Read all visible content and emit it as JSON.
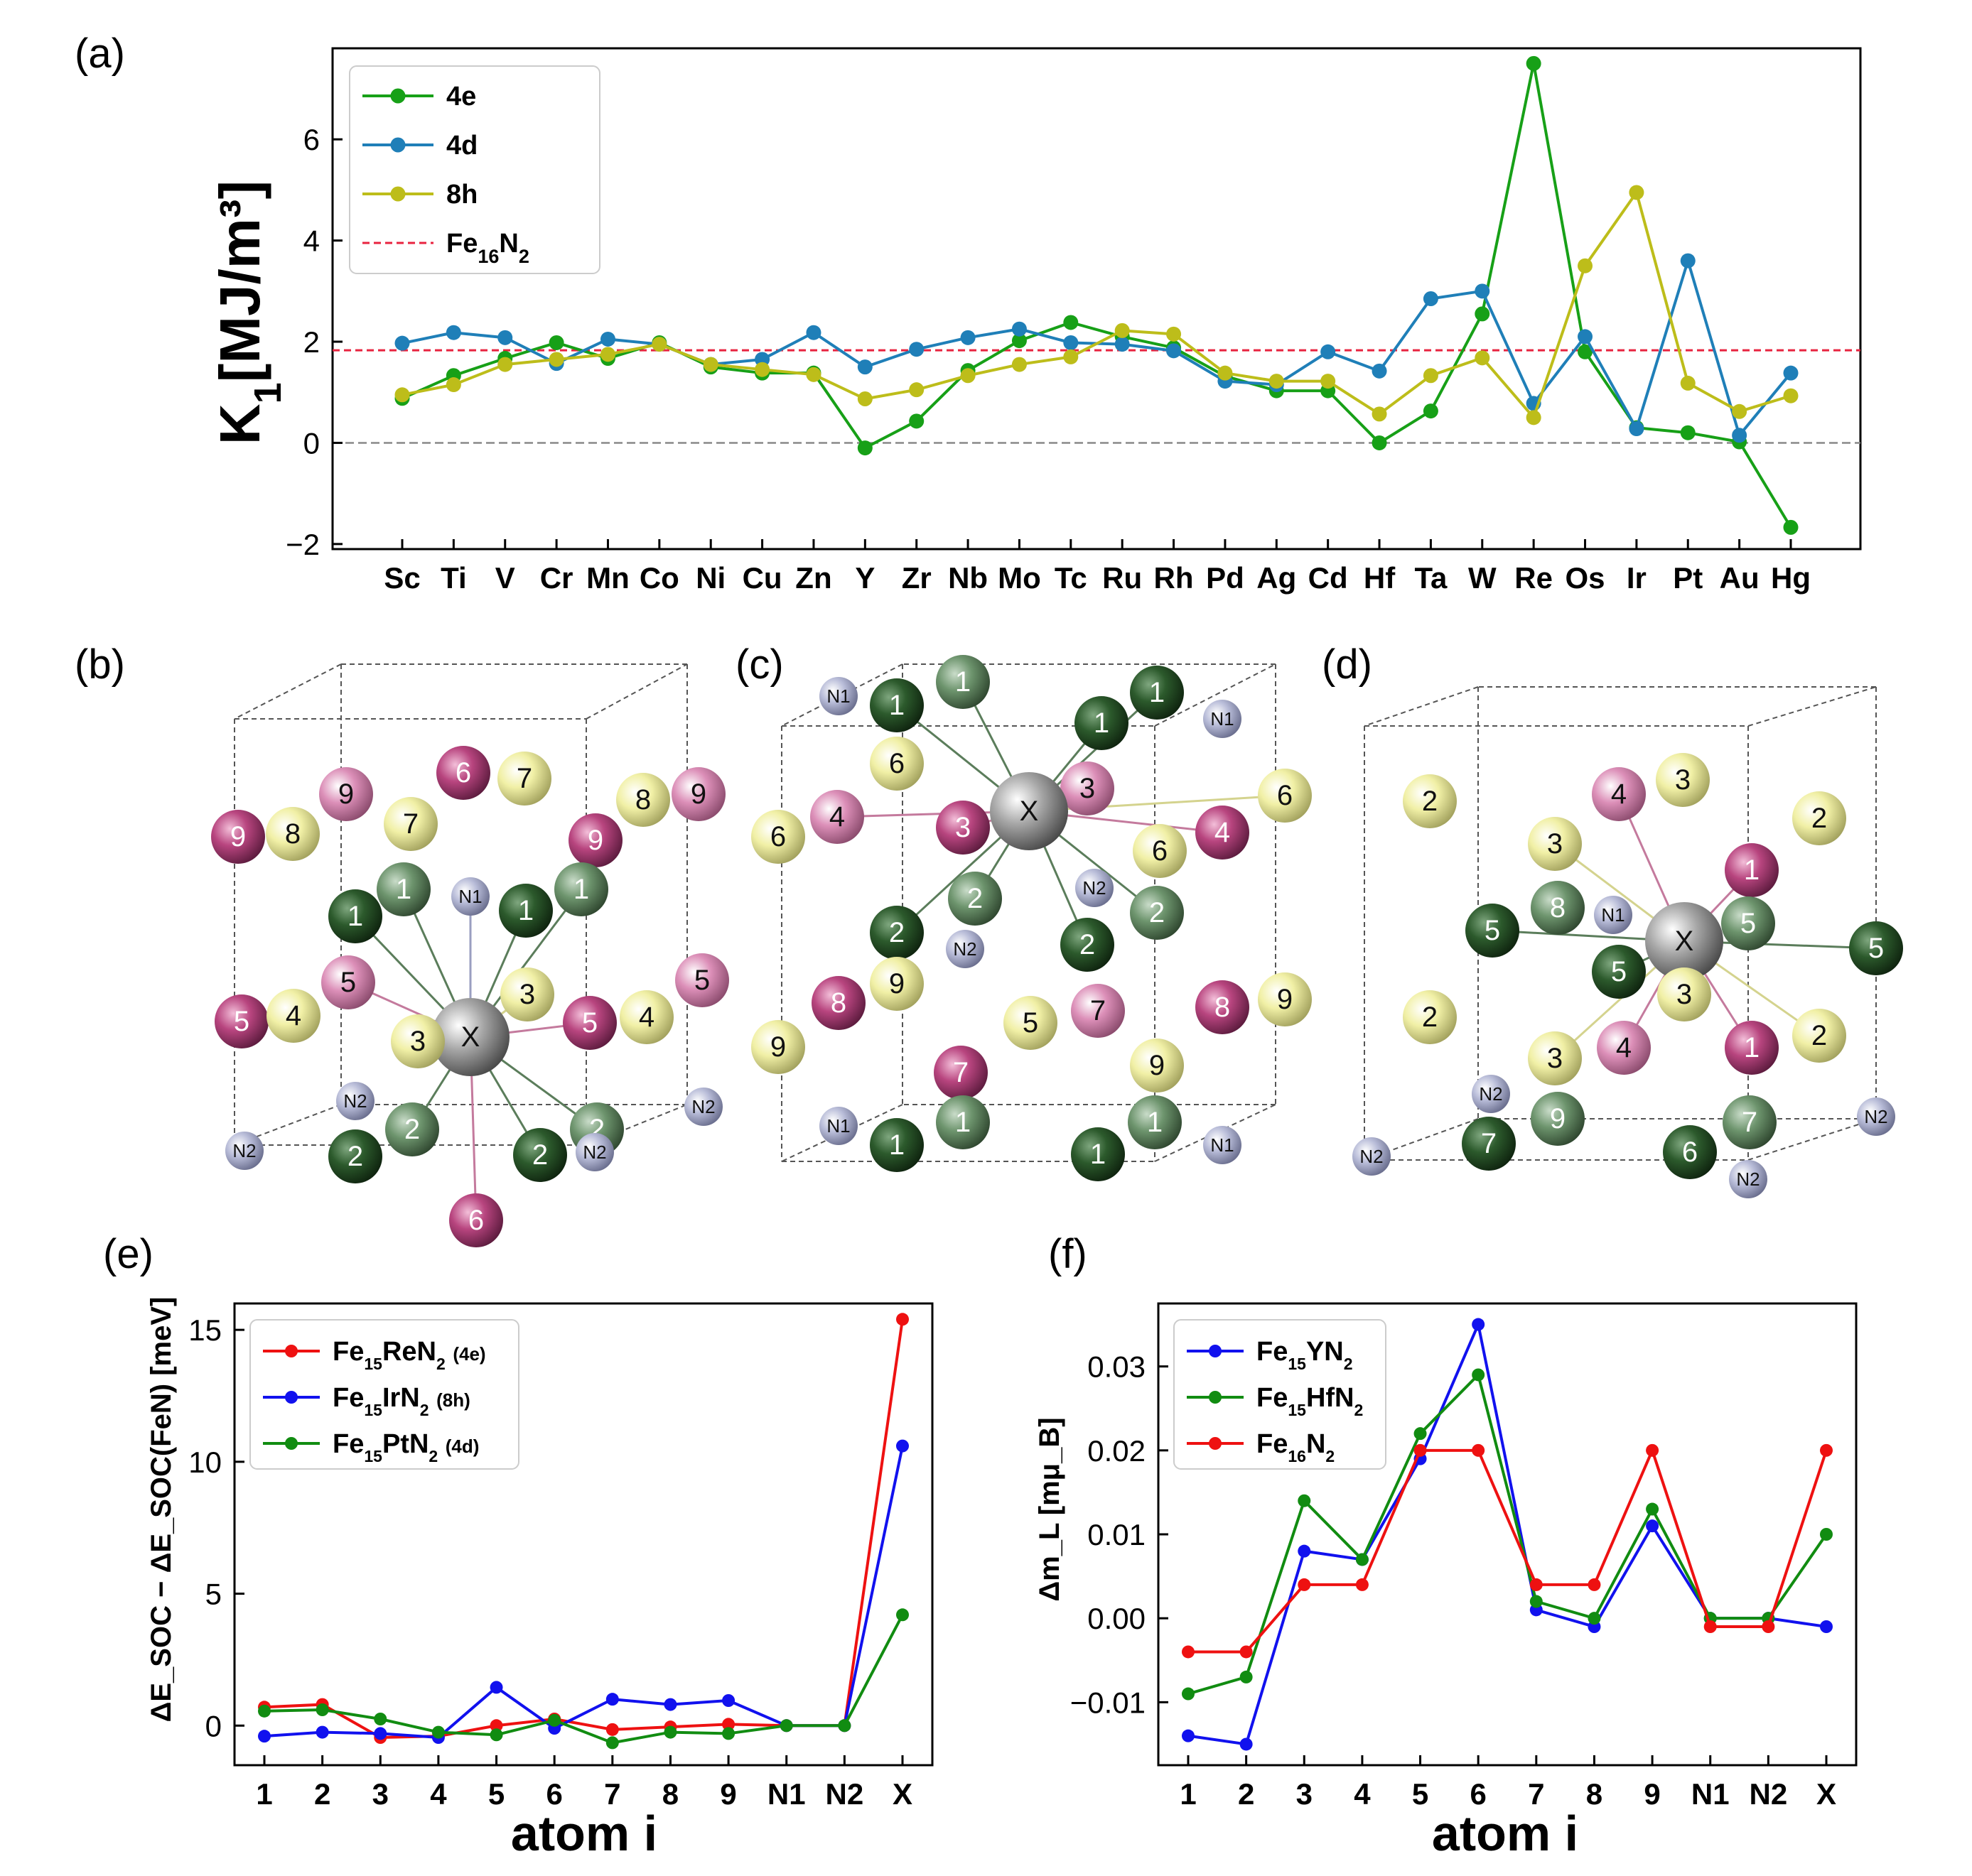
{
  "panel_labels": {
    "a": "(a)",
    "b": "(b)",
    "c": "(c)",
    "d": "(d)",
    "e": "(e)",
    "f": "(f)"
  },
  "chart_data": [
    {
      "id": "a",
      "type": "line",
      "ylabel": "K₁[MJ/m³]",
      "categories": [
        "Sc",
        "Ti",
        "V",
        "Cr",
        "Mn",
        "Co",
        "Ni",
        "Cu",
        "Zn",
        "Y",
        "Zr",
        "Nb",
        "Mo",
        "Tc",
        "Ru",
        "Rh",
        "Pd",
        "Ag",
        "Cd",
        "Hf",
        "Ta",
        "W",
        "Re",
        "Os",
        "Ir",
        "Pt",
        "Au",
        "Hg"
      ],
      "ylim": [
        -2.1,
        7.8
      ],
      "yticks": [
        -2,
        0,
        2,
        4,
        6
      ],
      "ytick_labels": [
        "−2",
        "0",
        "2",
        "4",
        "6"
      ],
      "series": [
        {
          "name": "4e",
          "color": "#17a017",
          "values": [
            0.88,
            1.33,
            1.67,
            1.98,
            1.67,
            1.98,
            1.5,
            1.38,
            1.38,
            -0.1,
            0.43,
            1.43,
            2.02,
            2.38,
            2.1,
            1.88,
            1.32,
            1.03,
            1.03,
            0.0,
            0.63,
            2.55,
            7.5,
            1.8,
            0.3,
            0.2,
            0.02,
            -1.67
          ]
        },
        {
          "name": "4d",
          "color": "#1f7fb8",
          "values": [
            1.97,
            2.18,
            2.08,
            1.57,
            2.05,
            1.95,
            1.55,
            1.65,
            2.18,
            1.5,
            1.85,
            2.08,
            2.25,
            1.98,
            1.95,
            1.82,
            1.22,
            1.15,
            1.8,
            1.42,
            2.85,
            3.0,
            0.78,
            2.1,
            0.28,
            3.6,
            0.15,
            1.38
          ]
        },
        {
          "name": "8h",
          "color": "#bdbd1a",
          "values": [
            0.95,
            1.15,
            1.55,
            1.65,
            1.75,
            1.95,
            1.55,
            1.45,
            1.35,
            0.87,
            1.05,
            1.33,
            1.55,
            1.7,
            2.22,
            2.15,
            1.38,
            1.22,
            1.22,
            0.57,
            1.33,
            1.68,
            0.5,
            3.5,
            4.95,
            1.18,
            0.62,
            0.93
          ]
        }
      ],
      "reference_line": {
        "name": "Fe₁₆N₂",
        "value": 1.83,
        "color": "#e8233f",
        "style": "dashed"
      },
      "zero_line": {
        "value": 0,
        "color": "#888888",
        "style": "dashed"
      },
      "legend": [
        "4e",
        "4d",
        "8h",
        "Fe₁₆N₂"
      ],
      "legend_placement": "top-left"
    },
    {
      "id": "e",
      "type": "line",
      "ylabel": "ΔE_SOC − ΔE_SOC(FeN) [meV]",
      "xlabel": "atom i",
      "categories": [
        "1",
        "2",
        "3",
        "4",
        "5",
        "6",
        "7",
        "8",
        "9",
        "N1",
        "N2",
        "X"
      ],
      "ylim": [
        -1.5,
        16
      ],
      "yticks": [
        0,
        5,
        10,
        15
      ],
      "ytick_labels": [
        "0",
        "5",
        "10",
        "15"
      ],
      "series": [
        {
          "name": "Fe₁₅ReN₂ (4e)",
          "color": "#ee1111",
          "values": [
            0.7,
            0.8,
            -0.45,
            -0.4,
            0.0,
            0.25,
            -0.15,
            -0.05,
            0.05,
            0.0,
            0.0,
            15.4
          ]
        },
        {
          "name": "Fe₁₅IrN₂ (8h)",
          "color": "#1111ee",
          "values": [
            -0.4,
            -0.25,
            -0.3,
            -0.45,
            1.45,
            -0.1,
            1.0,
            0.8,
            0.95,
            0.0,
            0.0,
            10.6
          ]
        },
        {
          "name": "Fe₁₅PtN₂ (4d)",
          "color": "#118c11",
          "values": [
            0.55,
            0.6,
            0.25,
            -0.25,
            -0.35,
            0.2,
            -0.65,
            -0.25,
            -0.3,
            0.0,
            0.0,
            4.2
          ]
        }
      ],
      "legend": [
        "Fe₁₅ReN₂ (4e)",
        "Fe₁₅IrN₂ (8h)",
        "Fe₁₅PtN₂ (4d)"
      ],
      "legend_placement": "top-left"
    },
    {
      "id": "f",
      "type": "line",
      "ylabel": "Δm_L [mμ_B]",
      "xlabel": "atom i",
      "categories": [
        "1",
        "2",
        "3",
        "4",
        "5",
        "6",
        "7",
        "8",
        "9",
        "N1",
        "N2",
        "X"
      ],
      "ylim": [
        -0.0175,
        0.0375
      ],
      "yticks": [
        -0.01,
        0.0,
        0.01,
        0.02,
        0.03
      ],
      "ytick_labels": [
        "−0.01",
        "0.00",
        "0.01",
        "0.02",
        "0.03"
      ],
      "series": [
        {
          "name": "Fe₁₅YN₂",
          "color": "#1111ee",
          "values": [
            -0.014,
            -0.015,
            0.008,
            0.007,
            0.019,
            0.035,
            0.001,
            -0.001,
            0.011,
            0.0,
            0.0,
            -0.001
          ]
        },
        {
          "name": "Fe₁₅HfN₂",
          "color": "#118c11",
          "values": [
            -0.009,
            -0.007,
            0.014,
            0.007,
            0.022,
            0.029,
            0.002,
            0.0,
            0.013,
            0.0,
            0.0,
            0.01
          ]
        },
        {
          "name": "Fe₁₆N₂",
          "color": "#ee1111",
          "values": [
            -0.004,
            -0.004,
            0.004,
            0.004,
            0.02,
            0.02,
            0.004,
            0.004,
            0.02,
            -0.001,
            -0.001,
            0.02
          ]
        }
      ],
      "legend": [
        "Fe₁₅YN₂",
        "Fe₁₅HfN₂",
        "Fe₁₆N₂"
      ],
      "legend_placement": "top-left"
    }
  ],
  "structures": {
    "b": {
      "atoms": [
        {
          "label": "9",
          "type": "pink"
        },
        {
          "label": "8",
          "type": "yellow"
        },
        {
          "label": "9",
          "type": "pinkl"
        },
        {
          "label": "6",
          "type": "pink"
        },
        {
          "label": "7",
          "type": "yellow"
        },
        {
          "label": "7",
          "type": "yellow"
        },
        {
          "label": "9",
          "type": "pink"
        },
        {
          "label": "8",
          "type": "yellow"
        },
        {
          "label": "9",
          "type": "pinkl"
        },
        {
          "label": "1",
          "type": "greenl"
        },
        {
          "label": "1",
          "type": "greend"
        },
        {
          "label": "N1",
          "type": "n"
        },
        {
          "label": "1",
          "type": "greend"
        },
        {
          "label": "1",
          "type": "greenl"
        },
        {
          "label": "5",
          "type": "pinkl"
        },
        {
          "label": "3",
          "type": "yellow"
        },
        {
          "label": "5",
          "type": "pinkl"
        },
        {
          "label": "5",
          "type": "pink"
        },
        {
          "label": "4",
          "type": "yellow"
        },
        {
          "label": "X",
          "type": "x"
        },
        {
          "label": "3",
          "type": "yellow"
        },
        {
          "label": "5",
          "type": "pink"
        },
        {
          "label": "4",
          "type": "yellow"
        },
        {
          "label": "N2",
          "type": "n"
        },
        {
          "label": "N2",
          "type": "n"
        },
        {
          "label": "2",
          "type": "greenl"
        },
        {
          "label": "2",
          "type": "greenl"
        },
        {
          "label": "N2",
          "type": "n"
        },
        {
          "label": "2",
          "type": "greend"
        },
        {
          "label": "2",
          "type": "greend"
        },
        {
          "label": "N2",
          "type": "n"
        },
        {
          "label": "6",
          "type": "pink"
        }
      ]
    },
    "c": {
      "atoms": [
        {
          "label": "N1",
          "type": "n"
        },
        {
          "label": "1",
          "type": "greenl"
        },
        {
          "label": "1",
          "type": "greend"
        },
        {
          "label": "1",
          "type": "greend"
        },
        {
          "label": "N1",
          "type": "n"
        },
        {
          "label": "1",
          "type": "greend"
        },
        {
          "label": "6",
          "type": "yellow"
        },
        {
          "label": "3",
          "type": "pinkl"
        },
        {
          "label": "6",
          "type": "yellow"
        },
        {
          "label": "4",
          "type": "pinkl"
        },
        {
          "label": "3",
          "type": "pink"
        },
        {
          "label": "X",
          "type": "x"
        },
        {
          "label": "6",
          "type": "yellow"
        },
        {
          "label": "4",
          "type": "pink"
        },
        {
          "label": "6",
          "type": "yellow"
        },
        {
          "label": "N2",
          "type": "n"
        },
        {
          "label": "2",
          "type": "greenl"
        },
        {
          "label": "2",
          "type": "greend"
        },
        {
          "label": "N2",
          "type": "n"
        },
        {
          "label": "2",
          "type": "greend"
        },
        {
          "label": "2",
          "type": "greenl"
        },
        {
          "label": "8",
          "type": "pink"
        },
        {
          "label": "9",
          "type": "yellow"
        },
        {
          "label": "5",
          "type": "yellow"
        },
        {
          "label": "7",
          "type": "pinkl"
        },
        {
          "label": "8",
          "type": "pink"
        },
        {
          "label": "9",
          "type": "yellow"
        },
        {
          "label": "9",
          "type": "yellow"
        },
        {
          "label": "7",
          "type": "pink"
        },
        {
          "label": "9",
          "type": "yellow"
        },
        {
          "label": "N1",
          "type": "n"
        },
        {
          "label": "1",
          "type": "greenl"
        },
        {
          "label": "1",
          "type": "greend"
        },
        {
          "label": "1",
          "type": "greend"
        },
        {
          "label": "1",
          "type": "greenl"
        },
        {
          "label": "N1",
          "type": "n"
        }
      ]
    },
    "d": {
      "atoms": [
        {
          "label": "2",
          "type": "yellow"
        },
        {
          "label": "4",
          "type": "pinkl"
        },
        {
          "label": "3",
          "type": "yellow"
        },
        {
          "label": "2",
          "type": "yellow"
        },
        {
          "label": "3",
          "type": "yellow"
        },
        {
          "label": "8",
          "type": "greenl"
        },
        {
          "label": "1",
          "type": "pink"
        },
        {
          "label": "5",
          "type": "greenl"
        },
        {
          "label": "5",
          "type": "greend"
        },
        {
          "label": "N1",
          "type": "n"
        },
        {
          "label": "X",
          "type": "x"
        },
        {
          "label": "5",
          "type": "greend"
        },
        {
          "label": "5",
          "type": "greend"
        },
        {
          "label": "3",
          "type": "yellow"
        },
        {
          "label": "2",
          "type": "yellow"
        },
        {
          "label": "3",
          "type": "yellow"
        },
        {
          "label": "4",
          "type": "pinkl"
        },
        {
          "label": "1",
          "type": "pink"
        },
        {
          "label": "2",
          "type": "yellow"
        },
        {
          "label": "N2",
          "type": "n"
        },
        {
          "label": "9",
          "type": "greenl"
        },
        {
          "label": "7",
          "type": "greenl"
        },
        {
          "label": "N2",
          "type": "n"
        },
        {
          "label": "N2",
          "type": "n"
        },
        {
          "label": "7",
          "type": "greend"
        },
        {
          "label": "6",
          "type": "greend"
        },
        {
          "label": "N2",
          "type": "n"
        }
      ]
    }
  },
  "colors": {
    "yellow": "#f1f0a6",
    "pink": "#b8457f",
    "pinkl": "#dc8fb8",
    "greend": "#2c5a2c",
    "greenl": "#6d946d",
    "n": "#b8bcd8",
    "x": "#9a9a9a"
  }
}
